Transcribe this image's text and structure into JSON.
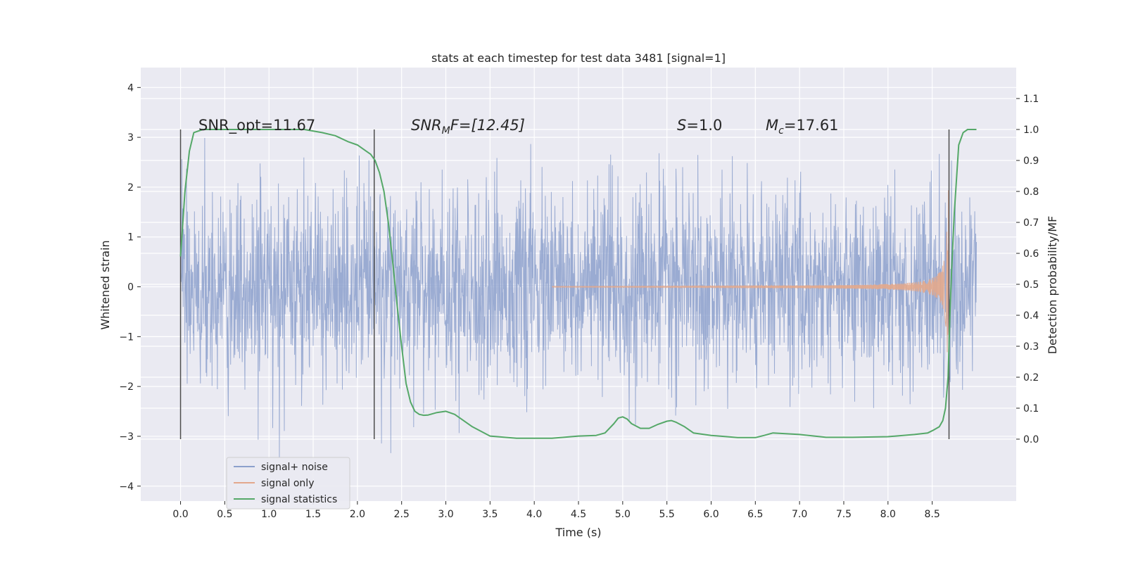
{
  "chart_data": {
    "type": "line",
    "title": "stats at each timestep for test data 3481 [signal=1]",
    "xlabel": "Time (s)",
    "ylabel_left": "Whitened strain",
    "ylabel_right": "Detection probability/MF",
    "xlim": [
      -0.45,
      9.45
    ],
    "ylim_left": [
      -4.3,
      4.4
    ],
    "ylim_right": [
      -0.2,
      1.2
    ],
    "x_ticks": [
      "0.0",
      "0.5",
      "1.0",
      "1.5",
      "2.0",
      "2.5",
      "3.0",
      "3.5",
      "4.0",
      "4.5",
      "5.0",
      "5.5",
      "6.0",
      "6.5",
      "7.0",
      "7.5",
      "8.0",
      "8.5"
    ],
    "x_tick_values": [
      0,
      0.5,
      1,
      1.5,
      2,
      2.5,
      3,
      3.5,
      4,
      4.5,
      5,
      5.5,
      6,
      6.5,
      7,
      7.5,
      8,
      8.5
    ],
    "y_left_ticks": [
      "4",
      "3",
      "2",
      "1",
      "0",
      "−1",
      "−2",
      "−3",
      "−4"
    ],
    "y_left_tick_values": [
      4,
      3,
      2,
      1,
      0,
      -1,
      -2,
      -3,
      -4
    ],
    "y_right_ticks": [
      "1.1",
      "1.0",
      "0.9",
      "0.8",
      "0.7",
      "0.6",
      "0.5",
      "0.4",
      "0.3",
      "0.2",
      "0.1",
      "0.0"
    ],
    "y_right_tick_values": [
      1.1,
      1.0,
      0.9,
      0.8,
      0.7,
      0.6,
      0.5,
      0.4,
      0.3,
      0.2,
      0.1,
      0.0
    ],
    "grid": true,
    "legend_position": "lower-left",
    "legend": [
      "signal+ noise",
      "signal only",
      "signal statistics"
    ],
    "colors": {
      "noise": "#8ca0cc",
      "signal": "#e3a88c",
      "stats": "#55a868",
      "vline": "#4d4d4d",
      "background": "#eaeaf2",
      "grid": "#ffffff"
    },
    "annotations": {
      "snr_opt": "SNR_opt=11.67",
      "snr_mf_base": "SNR",
      "snr_mf_sub": "M",
      "snr_mf_rest": "F=[12.45]",
      "s_label": "S",
      "s_rest": "=1.0",
      "mc_label": "M",
      "mc_sub": "c",
      "mc_rest": "=17.61"
    },
    "vertical_lines_x": [
      0.0,
      2.19,
      8.69
    ],
    "series": [
      {
        "name": "signal+ noise",
        "x_range": [
          0.0,
          9.0
        ],
        "typical_amplitude": 1.3,
        "peak_range": [
          -3.95,
          4.05
        ]
      },
      {
        "name": "signal only",
        "chirp_start": 4.2,
        "chirp_end": 8.69,
        "peak_amplitude": 2.0
      },
      {
        "name": "signal statistics",
        "x": [
          0.0,
          0.05,
          0.1,
          0.15,
          0.25,
          0.4,
          0.6,
          1.0,
          1.4,
          1.6,
          1.75,
          1.9,
          2.0,
          2.1,
          2.15,
          2.2,
          2.25,
          2.3,
          2.35,
          2.4,
          2.45,
          2.5,
          2.55,
          2.6,
          2.65,
          2.7,
          2.75,
          2.8,
          2.9,
          3.0,
          3.1,
          3.2,
          3.3,
          3.5,
          3.8,
          4.2,
          4.5,
          4.7,
          4.8,
          4.9,
          4.95,
          5.0,
          5.05,
          5.1,
          5.2,
          5.3,
          5.4,
          5.5,
          5.55,
          5.6,
          5.7,
          5.8,
          6.0,
          6.3,
          6.5,
          6.6,
          6.7,
          7.0,
          7.3,
          7.6,
          8.0,
          8.3,
          8.45,
          8.52,
          8.58,
          8.62,
          8.65,
          8.68,
          8.7,
          8.72,
          8.75,
          8.8,
          8.85,
          8.9,
          8.95,
          9.0
        ],
        "y": [
          0.59,
          0.8,
          0.93,
          0.99,
          1.0,
          1.0,
          1.0,
          1.0,
          1.0,
          0.99,
          0.98,
          0.96,
          0.95,
          0.93,
          0.92,
          0.9,
          0.86,
          0.8,
          0.7,
          0.57,
          0.43,
          0.3,
          0.18,
          0.12,
          0.09,
          0.08,
          0.077,
          0.078,
          0.086,
          0.09,
          0.08,
          0.06,
          0.04,
          0.01,
          0.003,
          0.003,
          0.01,
          0.012,
          0.02,
          0.05,
          0.068,
          0.072,
          0.065,
          0.05,
          0.035,
          0.035,
          0.048,
          0.058,
          0.06,
          0.055,
          0.04,
          0.02,
          0.012,
          0.005,
          0.005,
          0.012,
          0.02,
          0.015,
          0.006,
          0.006,
          0.008,
          0.015,
          0.02,
          0.03,
          0.04,
          0.06,
          0.1,
          0.2,
          0.4,
          0.55,
          0.73,
          0.95,
          0.99,
          1.0,
          1.0,
          1.0
        ]
      }
    ]
  }
}
